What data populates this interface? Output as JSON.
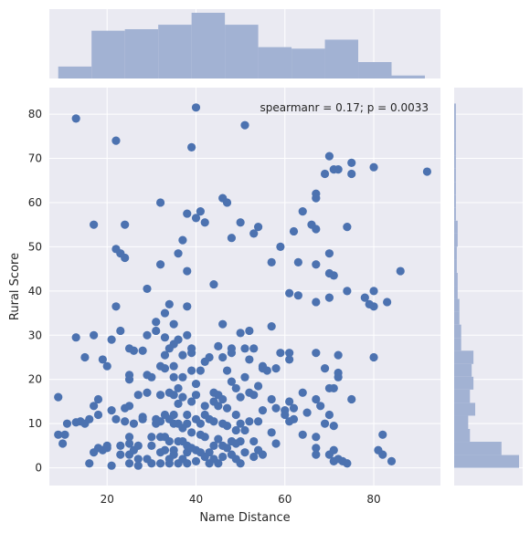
{
  "chart_data": {
    "type": "scatter",
    "title": "",
    "xlabel": "Name Distance",
    "ylabel": "Rural Score",
    "annotation": "spearmanr = 0.17; p = 0.0033",
    "xlim": [
      7,
      95
    ],
    "ylim": [
      -4,
      86
    ],
    "xticks": [
      20,
      40,
      60,
      80
    ],
    "yticks": [
      0,
      10,
      20,
      30,
      40,
      50,
      60,
      70,
      80
    ],
    "grid": true,
    "colors": {
      "background": "#eaeaf2",
      "grid": "#ffffff",
      "point": "#4c72b0",
      "hist": "#a2b2d3"
    },
    "marginal_x": {
      "bin_edges": [
        9,
        16.5,
        24,
        31.5,
        39,
        46.5,
        54,
        61.5,
        69,
        76.5,
        84,
        91.5
      ],
      "counts": [
        8,
        32,
        33,
        36,
        44,
        36,
        21,
        20,
        26,
        11,
        2
      ]
    },
    "marginal_y": {
      "bin_edges": [
        0,
        2.9,
        5.9,
        8.8,
        11.8,
        14.7,
        17.7,
        20.6,
        23.5,
        26.5,
        29.4,
        32.4,
        35.3,
        38.2,
        41.2,
        44.1,
        47.1,
        50.0,
        53.0,
        55.9,
        58.9,
        61.8,
        64.7,
        67.7,
        70.6,
        73.6,
        76.5,
        79.5,
        82.4
      ],
      "counts": [
        37,
        27,
        9,
        8,
        12,
        9,
        11,
        10,
        11,
        4,
        4,
        3,
        3,
        2,
        2,
        1.5,
        1.5,
        2,
        2,
        1,
        1,
        1,
        1,
        1,
        1,
        1,
        1,
        1
      ]
    },
    "points": [
      [
        9,
        16
      ],
      [
        9,
        7.5
      ],
      [
        10,
        5.5
      ],
      [
        10.5,
        7.5
      ],
      [
        11,
        10
      ],
      [
        13,
        79
      ],
      [
        13,
        10.3
      ],
      [
        13,
        29.5
      ],
      [
        14,
        10.5
      ],
      [
        15,
        25
      ],
      [
        15,
        10
      ],
      [
        16,
        1
      ],
      [
        16,
        11
      ],
      [
        17,
        55
      ],
      [
        17,
        3.5
      ],
      [
        17,
        14
      ],
      [
        17,
        30
      ],
      [
        18,
        4.5
      ],
      [
        18,
        15.5
      ],
      [
        18,
        12
      ],
      [
        19,
        4
      ],
      [
        19,
        24.5
      ],
      [
        20,
        23
      ],
      [
        20,
        5
      ],
      [
        20,
        4.5
      ],
      [
        21,
        0.5
      ],
      [
        21,
        13
      ],
      [
        21,
        29
      ],
      [
        22,
        74
      ],
      [
        22,
        49.5
      ],
      [
        22,
        36.5
      ],
      [
        22,
        11
      ],
      [
        23,
        3
      ],
      [
        23,
        5
      ],
      [
        23,
        48.5
      ],
      [
        23,
        31
      ],
      [
        24,
        55
      ],
      [
        24,
        47.5
      ],
      [
        24,
        13.5
      ],
      [
        24,
        10.5
      ],
      [
        25,
        3
      ],
      [
        25,
        27
      ],
      [
        25,
        21
      ],
      [
        25,
        20
      ],
      [
        25,
        14
      ],
      [
        25,
        1
      ],
      [
        25,
        5.5
      ],
      [
        25,
        7
      ],
      [
        26,
        26.5
      ],
      [
        26,
        10
      ],
      [
        26,
        4
      ],
      [
        27,
        2
      ],
      [
        27,
        16.5
      ],
      [
        27,
        5
      ],
      [
        27,
        0.5
      ],
      [
        28,
        11
      ],
      [
        28,
        26.5
      ],
      [
        28,
        11.5
      ],
      [
        29,
        2
      ],
      [
        29,
        40.5
      ],
      [
        29,
        30
      ],
      [
        29,
        21
      ],
      [
        29,
        17
      ],
      [
        30,
        20.5
      ],
      [
        30,
        7
      ],
      [
        30,
        5
      ],
      [
        30,
        1
      ],
      [
        31,
        33
      ],
      [
        31,
        31
      ],
      [
        31,
        10
      ],
      [
        31,
        11
      ],
      [
        32,
        60
      ],
      [
        32,
        46
      ],
      [
        32,
        23
      ],
      [
        32,
        16.5
      ],
      [
        32,
        10.5
      ],
      [
        32,
        7
      ],
      [
        32,
        3.5
      ],
      [
        32,
        1
      ],
      [
        33,
        35
      ],
      [
        33,
        29.5
      ],
      [
        33,
        25.5
      ],
      [
        33,
        22.5
      ],
      [
        33,
        12
      ],
      [
        33,
        7
      ],
      [
        33,
        4
      ],
      [
        34,
        37
      ],
      [
        34,
        27
      ],
      [
        34,
        17
      ],
      [
        34,
        11
      ],
      [
        34,
        6
      ],
      [
        34,
        2
      ],
      [
        34,
        1
      ],
      [
        35,
        32.5
      ],
      [
        35,
        28
      ],
      [
        35,
        23
      ],
      [
        35,
        20.5
      ],
      [
        35,
        16.5
      ],
      [
        35,
        12
      ],
      [
        35,
        10
      ],
      [
        35,
        4
      ],
      [
        35,
        3
      ],
      [
        36,
        48.5
      ],
      [
        36,
        29
      ],
      [
        36,
        18
      ],
      [
        36,
        14.5
      ],
      [
        36,
        10
      ],
      [
        36,
        6
      ],
      [
        36,
        1
      ],
      [
        37,
        51.5
      ],
      [
        37,
        25.5
      ],
      [
        37,
        20.5
      ],
      [
        37,
        16
      ],
      [
        37,
        9
      ],
      [
        37,
        6
      ],
      [
        37,
        2
      ],
      [
        38,
        57.5
      ],
      [
        38,
        44.5
      ],
      [
        38,
        36.5
      ],
      [
        38,
        30
      ],
      [
        38,
        12
      ],
      [
        38,
        10
      ],
      [
        38,
        5
      ],
      [
        38,
        3.5
      ],
      [
        38,
        1
      ],
      [
        39,
        72.5
      ],
      [
        39,
        27
      ],
      [
        39,
        26
      ],
      [
        39,
        22
      ],
      [
        39,
        15
      ],
      [
        39,
        8
      ],
      [
        39,
        4.5
      ],
      [
        40,
        81.5
      ],
      [
        40,
        56.5
      ],
      [
        40,
        19
      ],
      [
        40,
        16.5
      ],
      [
        40,
        11
      ],
      [
        40,
        4
      ],
      [
        40,
        1.5
      ],
      [
        41,
        58
      ],
      [
        41,
        22
      ],
      [
        41,
        10
      ],
      [
        41,
        7.5
      ],
      [
        41,
        3.5
      ],
      [
        42,
        55.5
      ],
      [
        42,
        24
      ],
      [
        42,
        14
      ],
      [
        42,
        12
      ],
      [
        42,
        7
      ],
      [
        42,
        2.5
      ],
      [
        43,
        25
      ],
      [
        43,
        11
      ],
      [
        43,
        3.5
      ],
      [
        43,
        1
      ],
      [
        44,
        41.5
      ],
      [
        44,
        17
      ],
      [
        44,
        15
      ],
      [
        44,
        10.5
      ],
      [
        44,
        5
      ],
      [
        44,
        2
      ],
      [
        45,
        27.5
      ],
      [
        45,
        16.5
      ],
      [
        45,
        14
      ],
      [
        45,
        6.5
      ],
      [
        45,
        1
      ],
      [
        46,
        61
      ],
      [
        46,
        32.5
      ],
      [
        46,
        25
      ],
      [
        46,
        15.5
      ],
      [
        46,
        10
      ],
      [
        46,
        5
      ],
      [
        46,
        2.5
      ],
      [
        47,
        60
      ],
      [
        47,
        22
      ],
      [
        47,
        13.5
      ],
      [
        47,
        9.5
      ],
      [
        47,
        4.5
      ],
      [
        48,
        52
      ],
      [
        48,
        27
      ],
      [
        48,
        26
      ],
      [
        48,
        19.5
      ],
      [
        48,
        6
      ],
      [
        48,
        3
      ],
      [
        49,
        18
      ],
      [
        49,
        12
      ],
      [
        49,
        8.5
      ],
      [
        49,
        5.5
      ],
      [
        49,
        2
      ],
      [
        50,
        55.5
      ],
      [
        50,
        30.5
      ],
      [
        50,
        16
      ],
      [
        50,
        10
      ],
      [
        50,
        6
      ],
      [
        50,
        1
      ],
      [
        51,
        77.5
      ],
      [
        51,
        27
      ],
      [
        51,
        20.5
      ],
      [
        51,
        8.5
      ],
      [
        51,
        3.5
      ],
      [
        52,
        31
      ],
      [
        52,
        24.5
      ],
      [
        52,
        17
      ],
      [
        52,
        10.5
      ],
      [
        53,
        53
      ],
      [
        53,
        27
      ],
      [
        53,
        16.5
      ],
      [
        53,
        6
      ],
      [
        53,
        2.5
      ],
      [
        54,
        54.5
      ],
      [
        54,
        18.5
      ],
      [
        54,
        10.5
      ],
      [
        54,
        4
      ],
      [
        55,
        23
      ],
      [
        55,
        22.5
      ],
      [
        55,
        13
      ],
      [
        55,
        3
      ],
      [
        56,
        22
      ],
      [
        57,
        46.5
      ],
      [
        57,
        32
      ],
      [
        57,
        15.5
      ],
      [
        57,
        8
      ],
      [
        58,
        22.5
      ],
      [
        58,
        13.5
      ],
      [
        58,
        5.5
      ],
      [
        59,
        50
      ],
      [
        59,
        26
      ],
      [
        60,
        13
      ],
      [
        60,
        12
      ],
      [
        61,
        39.5
      ],
      [
        61,
        26
      ],
      [
        61,
        24.5
      ],
      [
        61,
        15
      ],
      [
        61,
        10.5
      ],
      [
        62,
        53.5
      ],
      [
        62,
        13.5
      ],
      [
        62,
        11
      ],
      [
        63,
        46.5
      ],
      [
        63,
        39
      ],
      [
        64,
        58
      ],
      [
        64,
        17
      ],
      [
        64,
        7.5
      ],
      [
        65,
        12.5
      ],
      [
        66,
        55
      ],
      [
        67,
        62
      ],
      [
        67,
        61
      ],
      [
        67,
        54
      ],
      [
        67,
        46
      ],
      [
        67,
        37.5
      ],
      [
        67,
        26
      ],
      [
        67,
        15.5
      ],
      [
        67,
        7
      ],
      [
        67,
        4.5
      ],
      [
        67,
        3
      ],
      [
        68,
        14
      ],
      [
        69,
        66.5
      ],
      [
        69,
        22.5
      ],
      [
        69,
        10
      ],
      [
        70,
        70.5
      ],
      [
        70,
        48.5
      ],
      [
        70,
        44
      ],
      [
        70,
        38.5
      ],
      [
        70,
        18
      ],
      [
        70,
        12
      ],
      [
        70,
        3
      ],
      [
        71,
        67.5
      ],
      [
        71,
        43.5
      ],
      [
        71,
        18
      ],
      [
        71,
        1.5
      ],
      [
        71,
        9.5
      ],
      [
        71,
        4
      ],
      [
        72,
        67.5
      ],
      [
        72,
        25.5
      ],
      [
        72,
        21.5
      ],
      [
        72,
        20.5
      ],
      [
        72,
        2
      ],
      [
        73,
        1.5
      ],
      [
        74,
        54.5
      ],
      [
        74,
        40
      ],
      [
        74,
        1
      ],
      [
        75,
        69
      ],
      [
        75,
        66.5
      ],
      [
        75,
        15.5
      ],
      [
        78,
        38.5
      ],
      [
        79,
        37
      ],
      [
        80,
        68
      ],
      [
        80,
        40
      ],
      [
        80,
        36.5
      ],
      [
        80,
        25
      ],
      [
        81,
        4
      ],
      [
        82,
        7.5
      ],
      [
        82,
        3
      ],
      [
        83,
        37.5
      ],
      [
        84,
        1.5
      ],
      [
        86,
        44.5
      ],
      [
        92,
        67
      ]
    ]
  }
}
